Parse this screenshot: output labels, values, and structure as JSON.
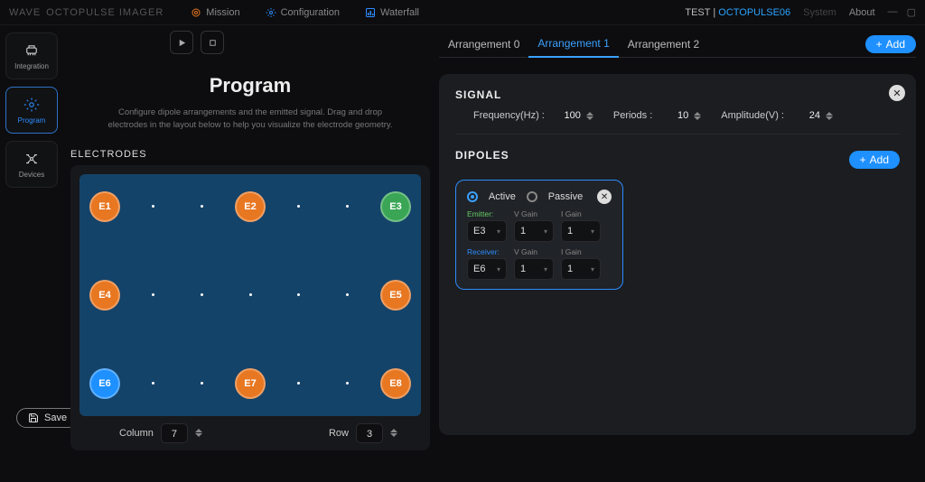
{
  "header": {
    "brand1": "WAVE",
    "brand2": "OCTOPULSE IMAGER",
    "nav": [
      {
        "label": "Mission",
        "icon": "target-icon"
      },
      {
        "label": "Configuration",
        "icon": "gear-icon"
      },
      {
        "label": "Waterfall",
        "icon": "chart-icon"
      }
    ],
    "test_label": "TEST | ",
    "test_device": "OCTOPULSE06",
    "system_label": "System",
    "about_label": "About"
  },
  "sidebar": {
    "items": [
      {
        "label": "Integration",
        "icon": "integration-icon",
        "active": false
      },
      {
        "label": "Program",
        "icon": "gear-icon",
        "active": true
      },
      {
        "label": "Devices",
        "icon": "drone-icon",
        "active": false
      }
    ]
  },
  "save_label": "Save",
  "program": {
    "title": "Program",
    "description": "Configure dipole arrangements and the emitted signal. Drag and drop electrodes in the layout below to help you visualize the electrode geometry.",
    "electrodes_label": "ELECTRODES",
    "board": {
      "background_color": "#14436a",
      "columns": {
        "label": "Column",
        "value": 7
      },
      "rows": {
        "label": "Row",
        "value": 3
      },
      "electrodes": [
        {
          "id": "E1",
          "col": 0,
          "row": 0,
          "color": "#e87722"
        },
        {
          "id": "E2",
          "col": 3,
          "row": 0,
          "color": "#e87722"
        },
        {
          "id": "E3",
          "col": 6,
          "row": 0,
          "color": "#3aa655"
        },
        {
          "id": "E4",
          "col": 0,
          "row": 1,
          "color": "#e87722"
        },
        {
          "id": "E5",
          "col": 6,
          "row": 1,
          "color": "#e87722"
        },
        {
          "id": "E6",
          "col": 0,
          "row": 2,
          "color": "#1e90ff"
        },
        {
          "id": "E7",
          "col": 3,
          "row": 2,
          "color": "#e87722"
        },
        {
          "id": "E8",
          "col": 6,
          "row": 2,
          "color": "#e87722"
        }
      ]
    }
  },
  "arrangements": {
    "tabs": [
      {
        "label": "Arrangement 0",
        "active": false
      },
      {
        "label": "Arrangement 1",
        "active": true
      },
      {
        "label": "Arrangement 2",
        "active": false
      }
    ],
    "add_label": "Add"
  },
  "signal": {
    "section_label": "SIGNAL",
    "frequency": {
      "label": "Frequency(Hz) :",
      "value": 100
    },
    "periods": {
      "label": "Periods :",
      "value": 10
    },
    "amplitude": {
      "label": "Amplitude(V) :",
      "value": 24
    }
  },
  "dipoles": {
    "section_label": "DIPOLES",
    "add_label": "Add",
    "card": {
      "mode_active_label": "Active",
      "mode_passive_label": "Passive",
      "mode_selected": "active",
      "emitter_label": "Emitter:",
      "receiver_label": "Receiver:",
      "vgain_label": "V Gain",
      "igain_label": "I Gain",
      "emitter": {
        "electrode": "E3",
        "vgain": 1,
        "igain": 1
      },
      "receiver": {
        "electrode": "E6",
        "vgain": 1,
        "igain": 1
      }
    }
  }
}
